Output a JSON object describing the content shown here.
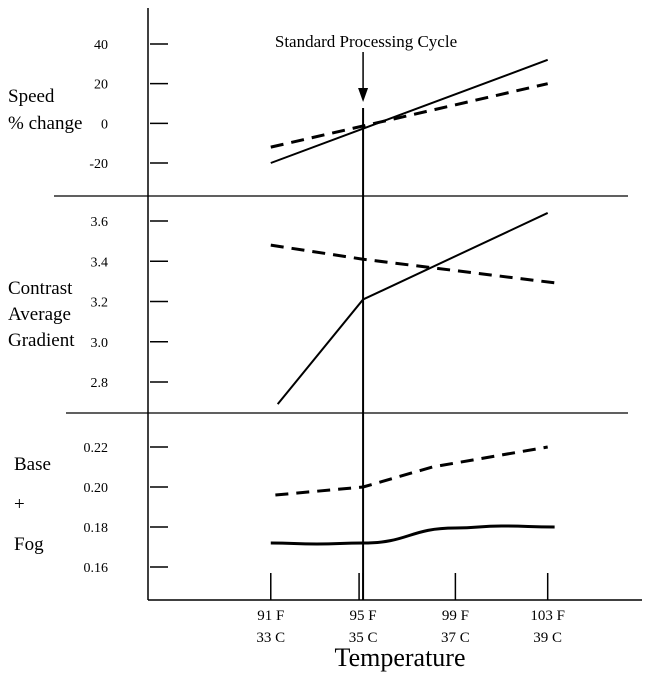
{
  "chart_data": {
    "type": "line",
    "xlabel": "Temperature",
    "x_ticks": [
      {
        "f": "91 F",
        "c": "33 C",
        "value": 91
      },
      {
        "f": "95 F",
        "c": "35 C",
        "value": 95
      },
      {
        "f": "99 F",
        "c": "37 C",
        "value": 99
      },
      {
        "f": "103 F",
        "c": "39 C",
        "value": 103
      }
    ],
    "xlim": [
      87.5,
      107
    ],
    "annotation": {
      "text": "Standard Processing Cycle",
      "x": 95
    },
    "panels": [
      {
        "id": "speed",
        "ylabel_lines": [
          "Speed",
          "% change"
        ],
        "ylim": [
          -30,
          50
        ],
        "y_ticks": [
          40,
          20,
          0,
          -20
        ],
        "y_tick_labels": [
          "40",
          "20",
          "0",
          "-20"
        ],
        "series": [
          {
            "style": "solid",
            "points": [
              [
                91,
                -20
              ],
              [
                103,
                32
              ]
            ]
          },
          {
            "style": "dashed",
            "points": [
              [
                91,
                -12
              ],
              [
                103,
                20
              ]
            ]
          }
        ]
      },
      {
        "id": "contrast",
        "ylabel_lines": [
          "Contrast",
          "Average",
          "Gradient"
        ],
        "ylim": [
          2.65,
          3.85
        ],
        "y_ticks": [
          3.6,
          3.4,
          3.2,
          3.0,
          2.8
        ],
        "y_tick_labels": [
          "3.6",
          "3.4",
          "3.2",
          "3.0",
          "2.8"
        ],
        "series": [
          {
            "style": "solid",
            "points": [
              [
                91.3,
                2.69
              ],
              [
                95,
                3.21
              ],
              [
                103,
                3.64
              ]
            ]
          },
          {
            "style": "dashed",
            "points": [
              [
                91,
                3.48
              ],
              [
                95,
                3.41
              ],
              [
                103.5,
                3.29
              ]
            ]
          }
        ]
      },
      {
        "id": "fog",
        "ylabel_lines": [
          "Base",
          "+",
          "Fog"
        ],
        "ylim": [
          0.15,
          0.235
        ],
        "y_ticks": [
          0.22,
          0.2,
          0.18,
          0.16
        ],
        "y_tick_labels": [
          "0.22",
          "0.20",
          "0.18",
          "0.16"
        ],
        "series": [
          {
            "style": "dashed",
            "points": [
              [
                91.2,
                0.196
              ],
              [
                95,
                0.2
              ],
              [
                98,
                0.21
              ],
              [
                103,
                0.22
              ]
            ]
          },
          {
            "style": "solid",
            "points": [
              [
                91,
                0.172
              ],
              [
                93,
                0.1715
              ],
              [
                95,
                0.172
              ],
              [
                99,
                0.1795
              ],
              [
                101,
                0.1805
              ],
              [
                103.3,
                0.18
              ]
            ]
          }
        ]
      }
    ]
  }
}
